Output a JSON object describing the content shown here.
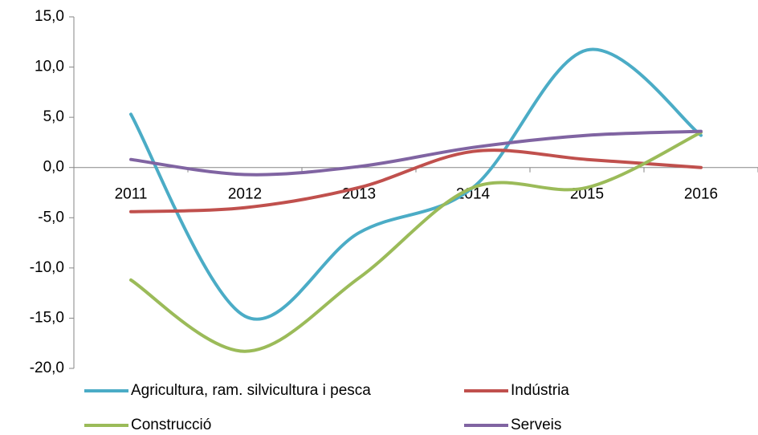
{
  "chart_data": {
    "type": "line",
    "categories": [
      "2011",
      "2012",
      "2013",
      "2014",
      "2015",
      "2016"
    ],
    "series": [
      {
        "name": "Agricultura, ram. silvicultura i pesca",
        "color": "#4bacc6",
        "values": [
          5.3,
          -14.8,
          -6.5,
          -2.0,
          11.7,
          3.2
        ]
      },
      {
        "name": "Indústria",
        "color": "#c0504d",
        "values": [
          -4.4,
          -4.0,
          -2.0,
          1.6,
          0.8,
          0.0
        ]
      },
      {
        "name": "Construcció",
        "color": "#9bbb59",
        "values": [
          -11.2,
          -18.3,
          -11.0,
          -2.0,
          -2.0,
          3.5
        ]
      },
      {
        "name": "Serveis",
        "color": "#8064a2",
        "values": [
          0.8,
          -0.7,
          0.1,
          2.0,
          3.2,
          3.6
        ]
      }
    ],
    "ylim": [
      -20,
      15
    ],
    "yticks": [
      {
        "value": -20,
        "label": "-20,0"
      },
      {
        "value": -15,
        "label": "-15,0"
      },
      {
        "value": -10,
        "label": "-10,0"
      },
      {
        "value": -5,
        "label": "-5,0"
      },
      {
        "value": 0,
        "label": "0,0"
      },
      {
        "value": 5,
        "label": "5,0"
      },
      {
        "value": 10,
        "label": "10,0"
      },
      {
        "value": 15,
        "label": "15,0"
      }
    ],
    "legend": "bottom",
    "smooth": true
  }
}
